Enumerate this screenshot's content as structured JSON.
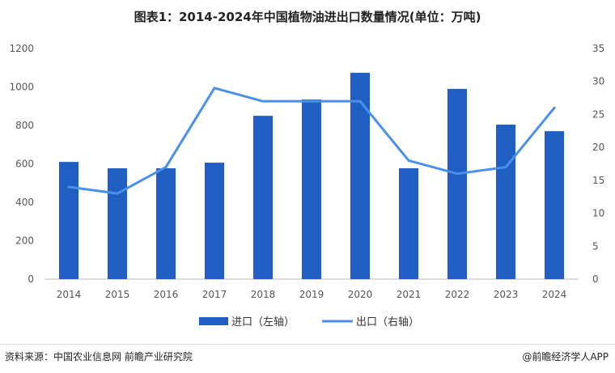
{
  "chart_data": {
    "type": "bar+line",
    "title": "图表1：2014-2024年中国植物油进出口数量情况(单位：万吨)",
    "categories": [
      "2014",
      "2015",
      "2016",
      "2017",
      "2018",
      "2019",
      "2020",
      "2021",
      "2022",
      "2023",
      "2024"
    ],
    "series": [
      {
        "name": "进口（左轴）",
        "type": "bar",
        "axis": "left",
        "color": "#1f5fc4",
        "values": [
          610,
          577,
          577,
          606,
          850,
          935,
          1074,
          577,
          990,
          804,
          770
        ]
      },
      {
        "name": "出口（右轴）",
        "type": "line",
        "axis": "right",
        "color": "#4a8fe8",
        "values": [
          14,
          13,
          17,
          29,
          27,
          27,
          27,
          18,
          16,
          17,
          26
        ]
      }
    ],
    "ylim_left": [
      0,
      1200
    ],
    "yticks_left": [
      "0",
      "200",
      "400",
      "600",
      "800",
      "1000",
      "1200"
    ],
    "ylim_right": [
      0,
      35
    ],
    "yticks_right": [
      "0",
      "5",
      "10",
      "15",
      "20",
      "25",
      "30",
      "35"
    ],
    "legend": "bottom"
  },
  "footer": {
    "source": "资料来源：中国农业信息网 前瞻产业研究院",
    "brand": "@前瞻经济学人APP"
  }
}
